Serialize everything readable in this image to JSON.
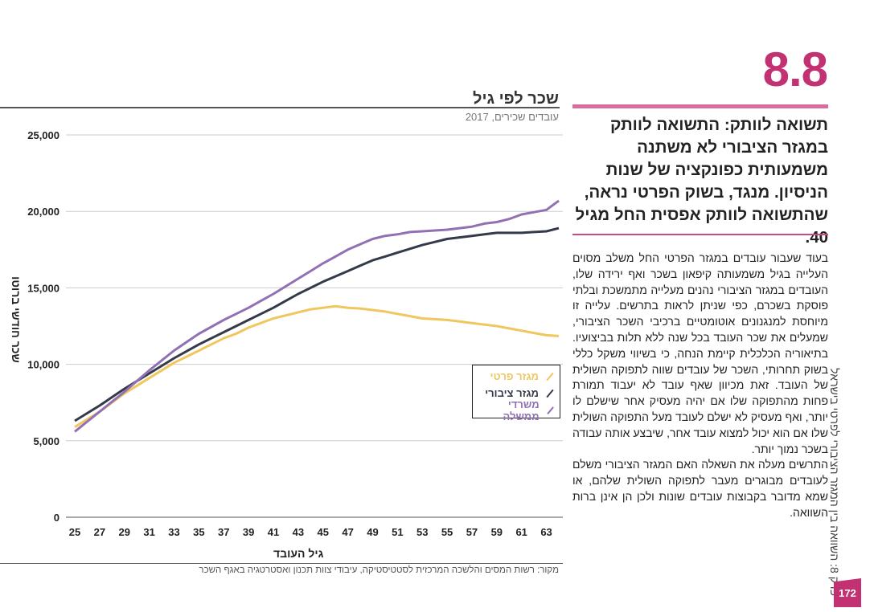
{
  "section": {
    "number": "8.8",
    "accent": "#c23273"
  },
  "heading": "תשואה לוותק: התשואה לוותק במגזר הציבורי לא משתנה משמעותית כפונקציה של שנות הניסיון. מנגד, בשוק הפרטי נראה, שהתשואה לוותק אפסית החל מגיל 40.",
  "body": [
    "בעוד שעבור עובדים במגזר הפרטי החל משלב מסוים העלייה בגיל משמעותה קיפאון בשכר ואף ירידה שלו, העובדים במגזר הציבורי נהנים מעלייה מתמשכת ובלתי פוסקת בשכרם, כפי שניתן לראות בתרשים. עלייה זו מיוחסת למנגנונים אוטומטיים ברכיבי השכר הציבורי, שמעלים את שכר העובד בכל שנה ללא תלות בביצועיו. בתיאוריה הכלכלית קיימת הנחה, כי בשיווי משקל כללי בשוק תחרותי, השכר של עובדים שווה לתפוקה השולית של העובד. זאת מכיוון שאף עובד לא יעבוד תמורת פחות מהתפוקה שלו אם יהיה מעסיק אחר שישלם לו יותר, ואף מעסיק לא ישלם לעובד מעל התפוקה השולית שלו אם הוא יכול למצוא עובד אחר, שיבצע אותה עבודה בשכר נמוך יותר.",
    "התרשים מעלה את השאלה האם המגזר הציבורי משלם לעובדים מבוגרים מעבר לתפוקה השולית שלהם, או שמא מדובר בקבוצות עובדים שונות ולכן הן אינן ברות השוואה."
  ],
  "side_text": "פרק 8: השוואה בין המגזר הציבורי לפרטי בישראל",
  "page_number": "172",
  "chart_data": {
    "type": "line",
    "title": "שכר לפי גיל",
    "subtitle": "עובדים שכירים, 2017",
    "xlabel": "גיל העובד",
    "ylabel": "שכר חודשי ברוטו",
    "source": "מקור: רשות המסים והלשכה המרכזית לסטטיסטיקה, עיבודי צוות תכנון ואסטרטגיה באגף השכר",
    "ylim": [
      0,
      25000
    ],
    "xlim": [
      25,
      64
    ],
    "yticks": [
      0,
      5000,
      10000,
      15000,
      20000,
      25000
    ],
    "ytick_labels": [
      "0",
      "5,000",
      "10,000",
      "15,000",
      "20,000",
      "25,000"
    ],
    "xticks": [
      "25",
      "27",
      "29",
      "31",
      "33",
      "35",
      "37",
      "39",
      "41",
      "43",
      "45",
      "47",
      "49",
      "51",
      "53",
      "55",
      "57",
      "59",
      "61",
      "63"
    ],
    "grid": true,
    "legend_position": "right",
    "x": [
      25,
      26,
      27,
      28,
      29,
      30,
      31,
      32,
      33,
      34,
      35,
      36,
      37,
      38,
      39,
      40,
      41,
      42,
      43,
      44,
      45,
      46,
      47,
      48,
      49,
      50,
      51,
      52,
      53,
      54,
      55,
      56,
      57,
      58,
      59,
      60,
      61,
      62,
      63,
      64
    ],
    "series": [
      {
        "name": "מגזר פרטי",
        "color": "#efc75e",
        "values": [
          5900,
          6400,
          6900,
          7500,
          8100,
          8600,
          9100,
          9600,
          10100,
          10500,
          10900,
          11300,
          11700,
          12000,
          12400,
          12700,
          13000,
          13200,
          13400,
          13600,
          13700,
          13800,
          13700,
          13650,
          13550,
          13450,
          13300,
          13150,
          13000,
          12950,
          12900,
          12800,
          12700,
          12600,
          12500,
          12350,
          12200,
          12050,
          11900,
          11850
        ]
      },
      {
        "name": "מגזר ציבורי",
        "color": "#343a4a",
        "values": [
          6300,
          6800,
          7300,
          7850,
          8400,
          8900,
          9400,
          9900,
          10400,
          10850,
          11300,
          11700,
          12100,
          12500,
          12900,
          13300,
          13700,
          14150,
          14600,
          15000,
          15400,
          15750,
          16100,
          16450,
          16800,
          17050,
          17300,
          17550,
          17800,
          18000,
          18200,
          18300,
          18400,
          18500,
          18600,
          18600,
          18600,
          18650,
          18700,
          18900
        ]
      },
      {
        "name": "משרדי ממשלה",
        "color": "#9270b4",
        "values": [
          5600,
          6250,
          6900,
          7550,
          8200,
          8900,
          9600,
          10250,
          10900,
          11450,
          12000,
          12450,
          12900,
          13300,
          13700,
          14150,
          14600,
          15100,
          15600,
          16100,
          16600,
          17050,
          17500,
          17850,
          18200,
          18400,
          18500,
          18650,
          18700,
          18750,
          18800,
          18900,
          19000,
          19200,
          19300,
          19500,
          19800,
          19950,
          20100,
          20700
        ]
      }
    ]
  }
}
